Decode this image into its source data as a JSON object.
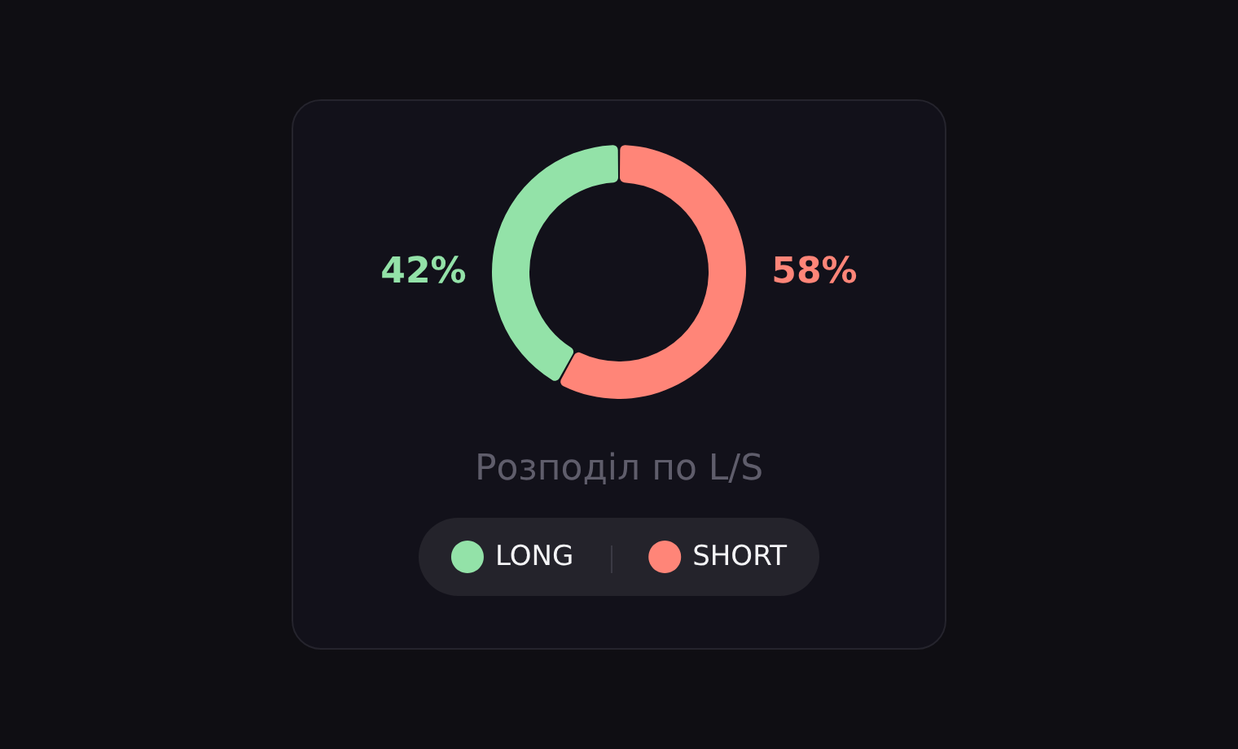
{
  "chart_data": {
    "type": "donut",
    "title": "Розподіл по L/S",
    "categories": [
      "LONG",
      "SHORT"
    ],
    "values": [
      42,
      58
    ],
    "colors": [
      "#93e2a8",
      "#ff8578"
    ],
    "value_labels": [
      "42%",
      "58%"
    ],
    "legend": "bottom"
  }
}
